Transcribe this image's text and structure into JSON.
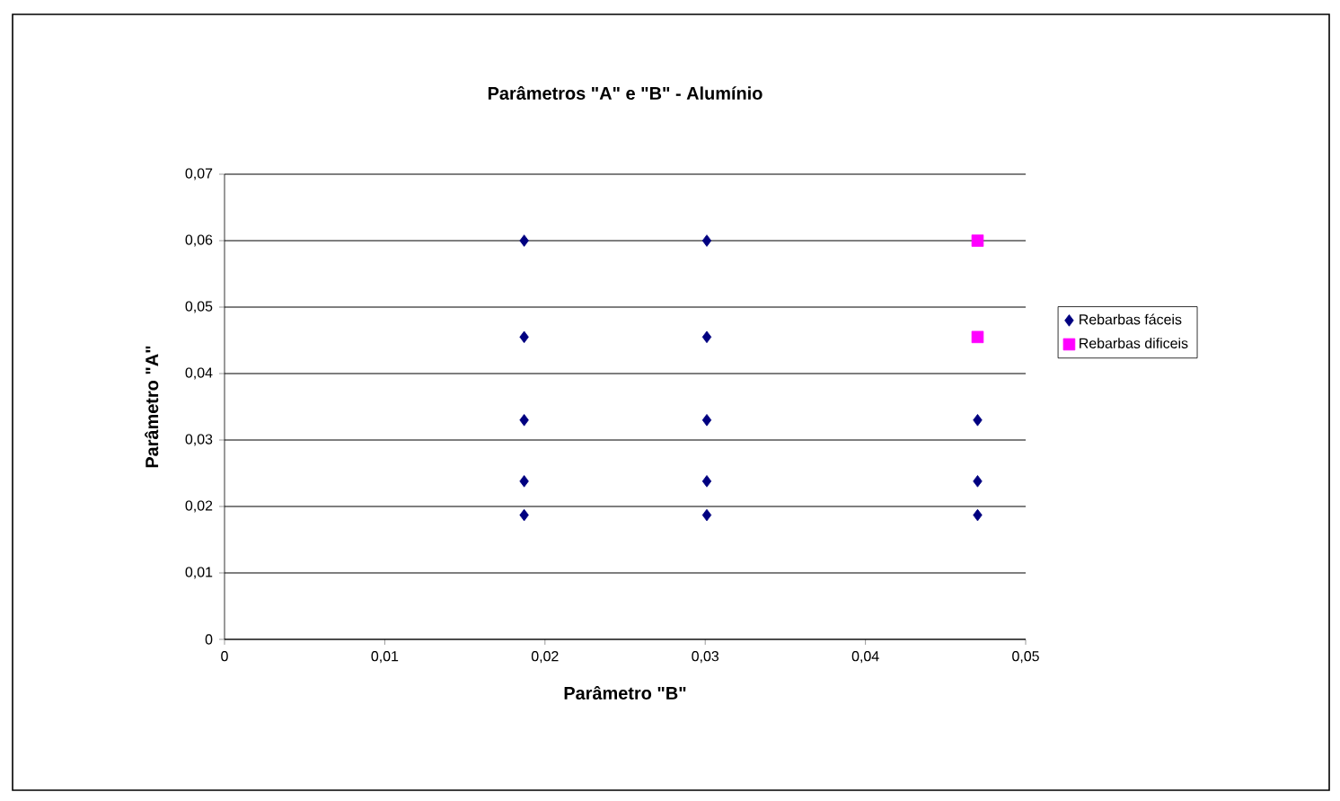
{
  "chart_data": {
    "type": "scatter",
    "title": "Parâmetros \"A\" e \"B\" - Alumínio",
    "xlabel": "Parâmetro \"B\"",
    "ylabel": "Parâmetro \"A\"",
    "series": [
      {
        "name": "Rebarbas fáceis",
        "color": "#000080",
        "marker": "diamond",
        "x": [
          0.0187,
          0.0187,
          0.0187,
          0.0187,
          0.0187,
          0.0301,
          0.0301,
          0.0301,
          0.0301,
          0.0301,
          0.047,
          0.047,
          0.047
        ],
        "values": [
          0.06,
          0.0455,
          0.033,
          0.0238,
          0.0187,
          0.06,
          0.0455,
          0.033,
          0.0238,
          0.0187,
          0.033,
          0.0238,
          0.0187
        ]
      },
      {
        "name": "Rebarbas dificeis",
        "color": "#ff00ff",
        "marker": "square",
        "x": [
          0.047,
          0.047
        ],
        "values": [
          0.06,
          0.0455
        ]
      }
    ],
    "xlim": [
      0,
      0.05
    ],
    "ylim": [
      0,
      0.07
    ],
    "xticks": [
      0,
      {
        "value": 0.01,
        "label": "0,01"
      },
      {
        "value": 0.02,
        "label": "0,02"
      },
      {
        "value": 0.03,
        "label": "0,03"
      },
      {
        "value": 0.04,
        "label": "0,04"
      },
      {
        "value": 0.05,
        "label": "0,05"
      }
    ],
    "yticks": [
      0,
      {
        "value": 0.01,
        "label": "0,01"
      },
      {
        "value": 0.02,
        "label": "0,02"
      },
      {
        "value": 0.03,
        "label": "0,03"
      },
      {
        "value": 0.04,
        "label": "0,04"
      },
      {
        "value": 0.05,
        "label": "0,05"
      },
      {
        "value": 0.06,
        "label": "0,06"
      },
      {
        "value": 0.07,
        "label": "0,07"
      }
    ],
    "grid": "y",
    "legend": "right"
  }
}
